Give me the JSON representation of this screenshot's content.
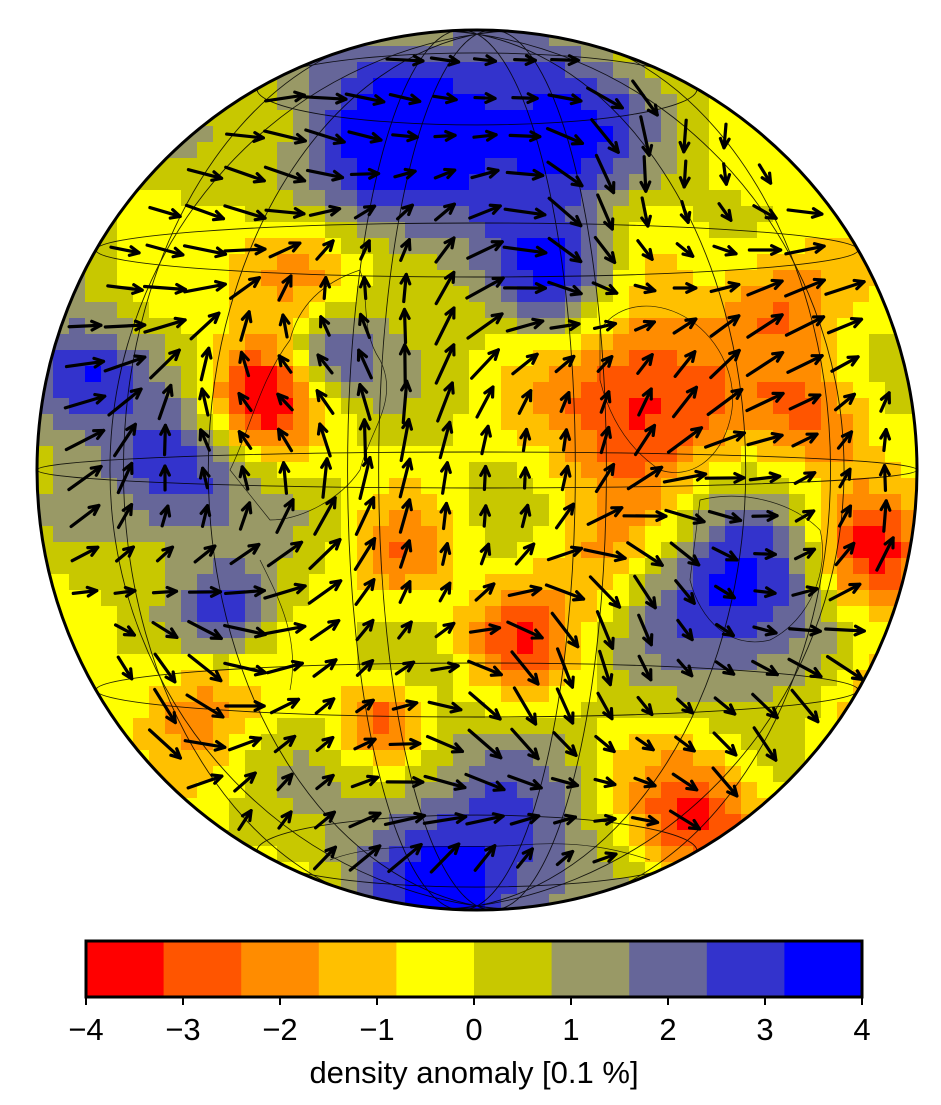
{
  "map": {
    "projection": "orthographic",
    "fields": [
      "density anomaly",
      "flow vectors"
    ],
    "coastlines": true,
    "graticule": true
  },
  "colorbar": {
    "label": "density anomaly [0.1 %]",
    "min": -4,
    "max": 4,
    "ticks": [
      "−4",
      "−3",
      "−2",
      "−1",
      "0",
      "1",
      "2",
      "3",
      "4"
    ],
    "colors": [
      "#ff0000",
      "#ff5500",
      "#ff8c00",
      "#ffc000",
      "#ffff00",
      "#c8c800",
      "#999966",
      "#666699",
      "#3333cc",
      "#0000ff"
    ]
  }
}
